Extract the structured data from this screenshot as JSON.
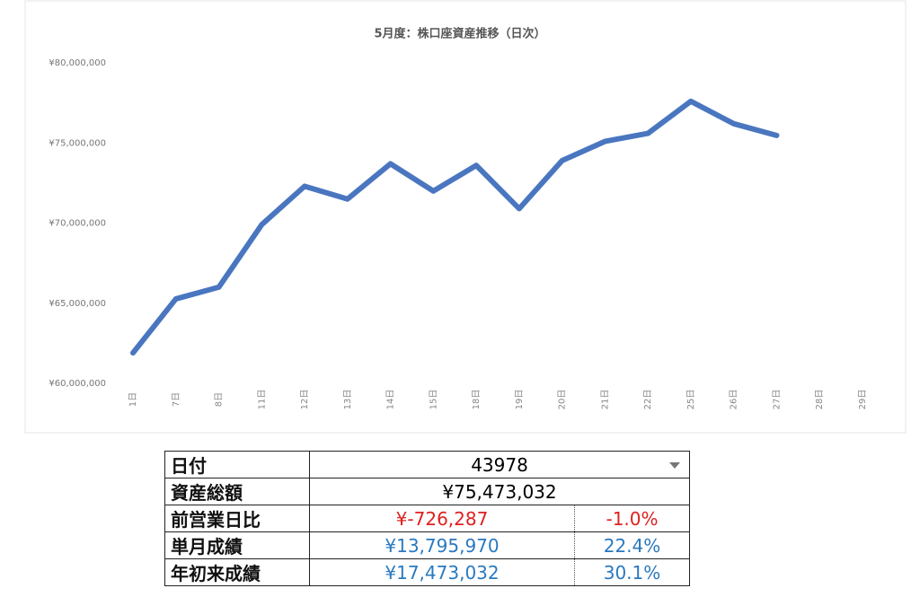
{
  "chart_data": {
    "type": "line",
    "title": "5月度：株口座資産推移（日次）",
    "categories": [
      "1日",
      "7日",
      "8日",
      "11日",
      "12日",
      "13日",
      "14日",
      "15日",
      "18日",
      "19日",
      "20日",
      "21日",
      "22日",
      "25日",
      "26日",
      "27日",
      "28日",
      "29日"
    ],
    "series": [
      {
        "name": "資産総額",
        "color": "#4a76c0",
        "values": [
          61900000,
          65270000,
          66000000,
          69900000,
          72300000,
          71500000,
          73700000,
          72000000,
          73600000,
          70900000,
          73900000,
          75100000,
          75600000,
          77600000,
          76200000,
          75470000,
          null,
          null
        ]
      }
    ],
    "ylim": [
      60000000,
      80000000
    ],
    "yticks": [
      {
        "value": 60000000,
        "label": "¥60,000,000"
      },
      {
        "value": 65000000,
        "label": "¥65,000,000"
      },
      {
        "value": 70000000,
        "label": "¥70,000,000"
      },
      {
        "value": 75000000,
        "label": "¥75,000,000"
      },
      {
        "value": 80000000,
        "label": "¥80,000,000"
      }
    ],
    "grid": false
  },
  "table": {
    "rows": [
      {
        "label": "日付",
        "value": "43978"
      },
      {
        "label": "資産総額",
        "value": "¥75,473,032"
      },
      {
        "label": "前営業日比",
        "value": "¥-726,287",
        "change": "-1.0%",
        "color": "#e02020"
      },
      {
        "label": "単月成績",
        "value": "¥13,795,970",
        "change": "22.4%",
        "color": "#2a79c0"
      },
      {
        "label": "年初来成績",
        "value": "¥17,473,032",
        "change": "30.1%",
        "color": "#2a79c0"
      }
    ]
  }
}
